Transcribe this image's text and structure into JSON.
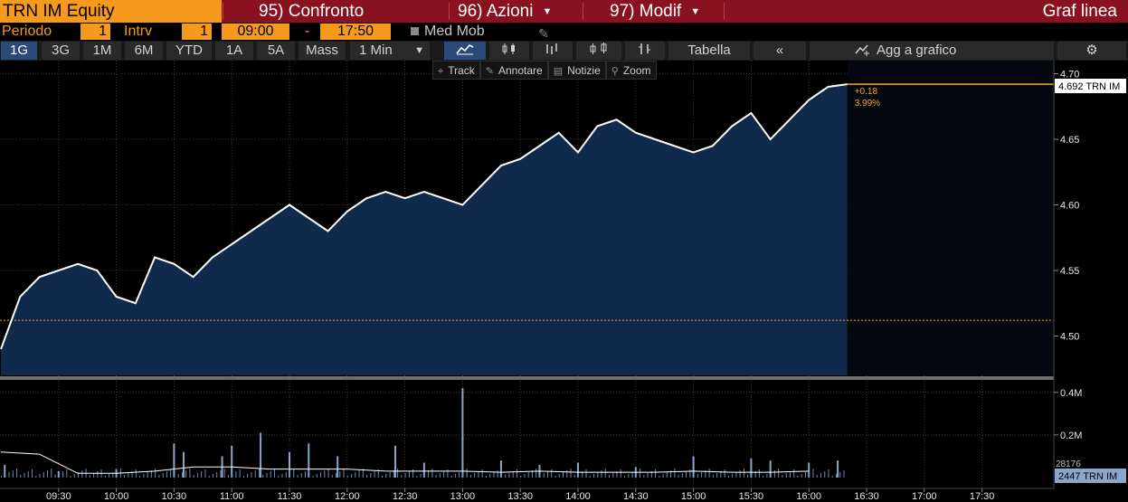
{
  "topbar": {
    "ticker": "TRN IM Equity",
    "confronto": "95) Confronto",
    "azioni": "96) Azioni",
    "modif": "97) Modif",
    "title": "Graf linea"
  },
  "period": {
    "periodo_label": "Periodo",
    "periodo_value": "1",
    "intrv_label": "Intrv",
    "intrv_value": "1",
    "start_time": "09:00",
    "dash": "-",
    "end_time": "17:50",
    "medmob_label": "Med Mob"
  },
  "ranges": [
    "1G",
    "3G",
    "1M",
    "6M",
    "YTD",
    "1A",
    "5A",
    "Mass"
  ],
  "interval": "1 Min",
  "toolbar": {
    "tabella": "Tabella",
    "collapse": "«",
    "agg": "Agg a grafico"
  },
  "tools": {
    "track": "Track",
    "annotare": "Annotare",
    "notizie": "Notizie",
    "zoom": "Zoom"
  },
  "colors": {
    "ticker_bg": "#f59a1c",
    "topbar_bg": "#8a1220",
    "area_fill": "#0f2a4a",
    "price_line": "#ffffff",
    "last_price_line": "#f5a623",
    "volume_bars": "#8aa6c8"
  },
  "chart_data": {
    "type": "line",
    "price": {
      "x": [
        "09:00",
        "09:10",
        "09:20",
        "09:30",
        "09:40",
        "09:50",
        "10:00",
        "10:10",
        "10:20",
        "10:30",
        "10:40",
        "10:50",
        "11:00",
        "11:10",
        "11:20",
        "11:30",
        "11:40",
        "11:50",
        "12:00",
        "12:10",
        "12:20",
        "12:30",
        "12:40",
        "12:50",
        "13:00",
        "13:10",
        "13:20",
        "13:30",
        "13:40",
        "13:50",
        "14:00",
        "14:10",
        "14:20",
        "14:30",
        "14:40",
        "14:50",
        "15:00",
        "15:10",
        "15:20",
        "15:30",
        "15:40",
        "15:50",
        "16:00",
        "16:10",
        "16:20"
      ],
      "y": [
        4.49,
        4.53,
        4.545,
        4.55,
        4.555,
        4.55,
        4.53,
        4.525,
        4.56,
        4.555,
        4.545,
        4.56,
        4.57,
        4.58,
        4.59,
        4.6,
        4.59,
        4.58,
        4.595,
        4.605,
        4.61,
        4.605,
        4.61,
        4.605,
        4.6,
        4.615,
        4.63,
        4.635,
        4.645,
        4.655,
        4.64,
        4.66,
        4.665,
        4.655,
        4.65,
        4.645,
        4.64,
        4.645,
        4.66,
        4.67,
        4.65,
        4.665,
        4.68,
        4.69,
        4.692
      ],
      "last_value": "4.692 TRN IM",
      "change": "+0.18",
      "change_pct": "3.99%",
      "reference_level": 4.512,
      "ylim": [
        4.47,
        4.71
      ],
      "y_ticks": [
        "4.70",
        "4.65",
        "4.60",
        "4.55",
        "4.50"
      ]
    },
    "volume": {
      "y_ticks": [
        "0.4M",
        "0.2M"
      ],
      "last_value": "2447 TRN IM",
      "hidden_label": "28176",
      "ylim": [
        0,
        0.45
      ],
      "x": [
        "09:02",
        "09:30",
        "10:00",
        "10:30",
        "10:35",
        "10:55",
        "11:00",
        "11:15",
        "11:30",
        "11:40",
        "11:55",
        "12:25",
        "12:40",
        "13:00",
        "13:20",
        "13:40",
        "14:00",
        "14:30",
        "15:00",
        "15:30",
        "15:40",
        "16:00",
        "16:15"
      ],
      "values": [
        0.06,
        0.03,
        0.04,
        0.16,
        0.12,
        0.1,
        0.15,
        0.21,
        0.12,
        0.16,
        0.1,
        0.15,
        0.07,
        0.42,
        0.08,
        0.06,
        0.07,
        0.05,
        0.1,
        0.09,
        0.08,
        0.07,
        0.08
      ]
    },
    "x_ticks": [
      "09:30",
      "10:00",
      "10:30",
      "11:00",
      "11:30",
      "12:00",
      "12:30",
      "13:00",
      "13:30",
      "14:00",
      "14:30",
      "15:00",
      "15:30",
      "16:00",
      "16:30",
      "17:00",
      "17:30"
    ]
  }
}
